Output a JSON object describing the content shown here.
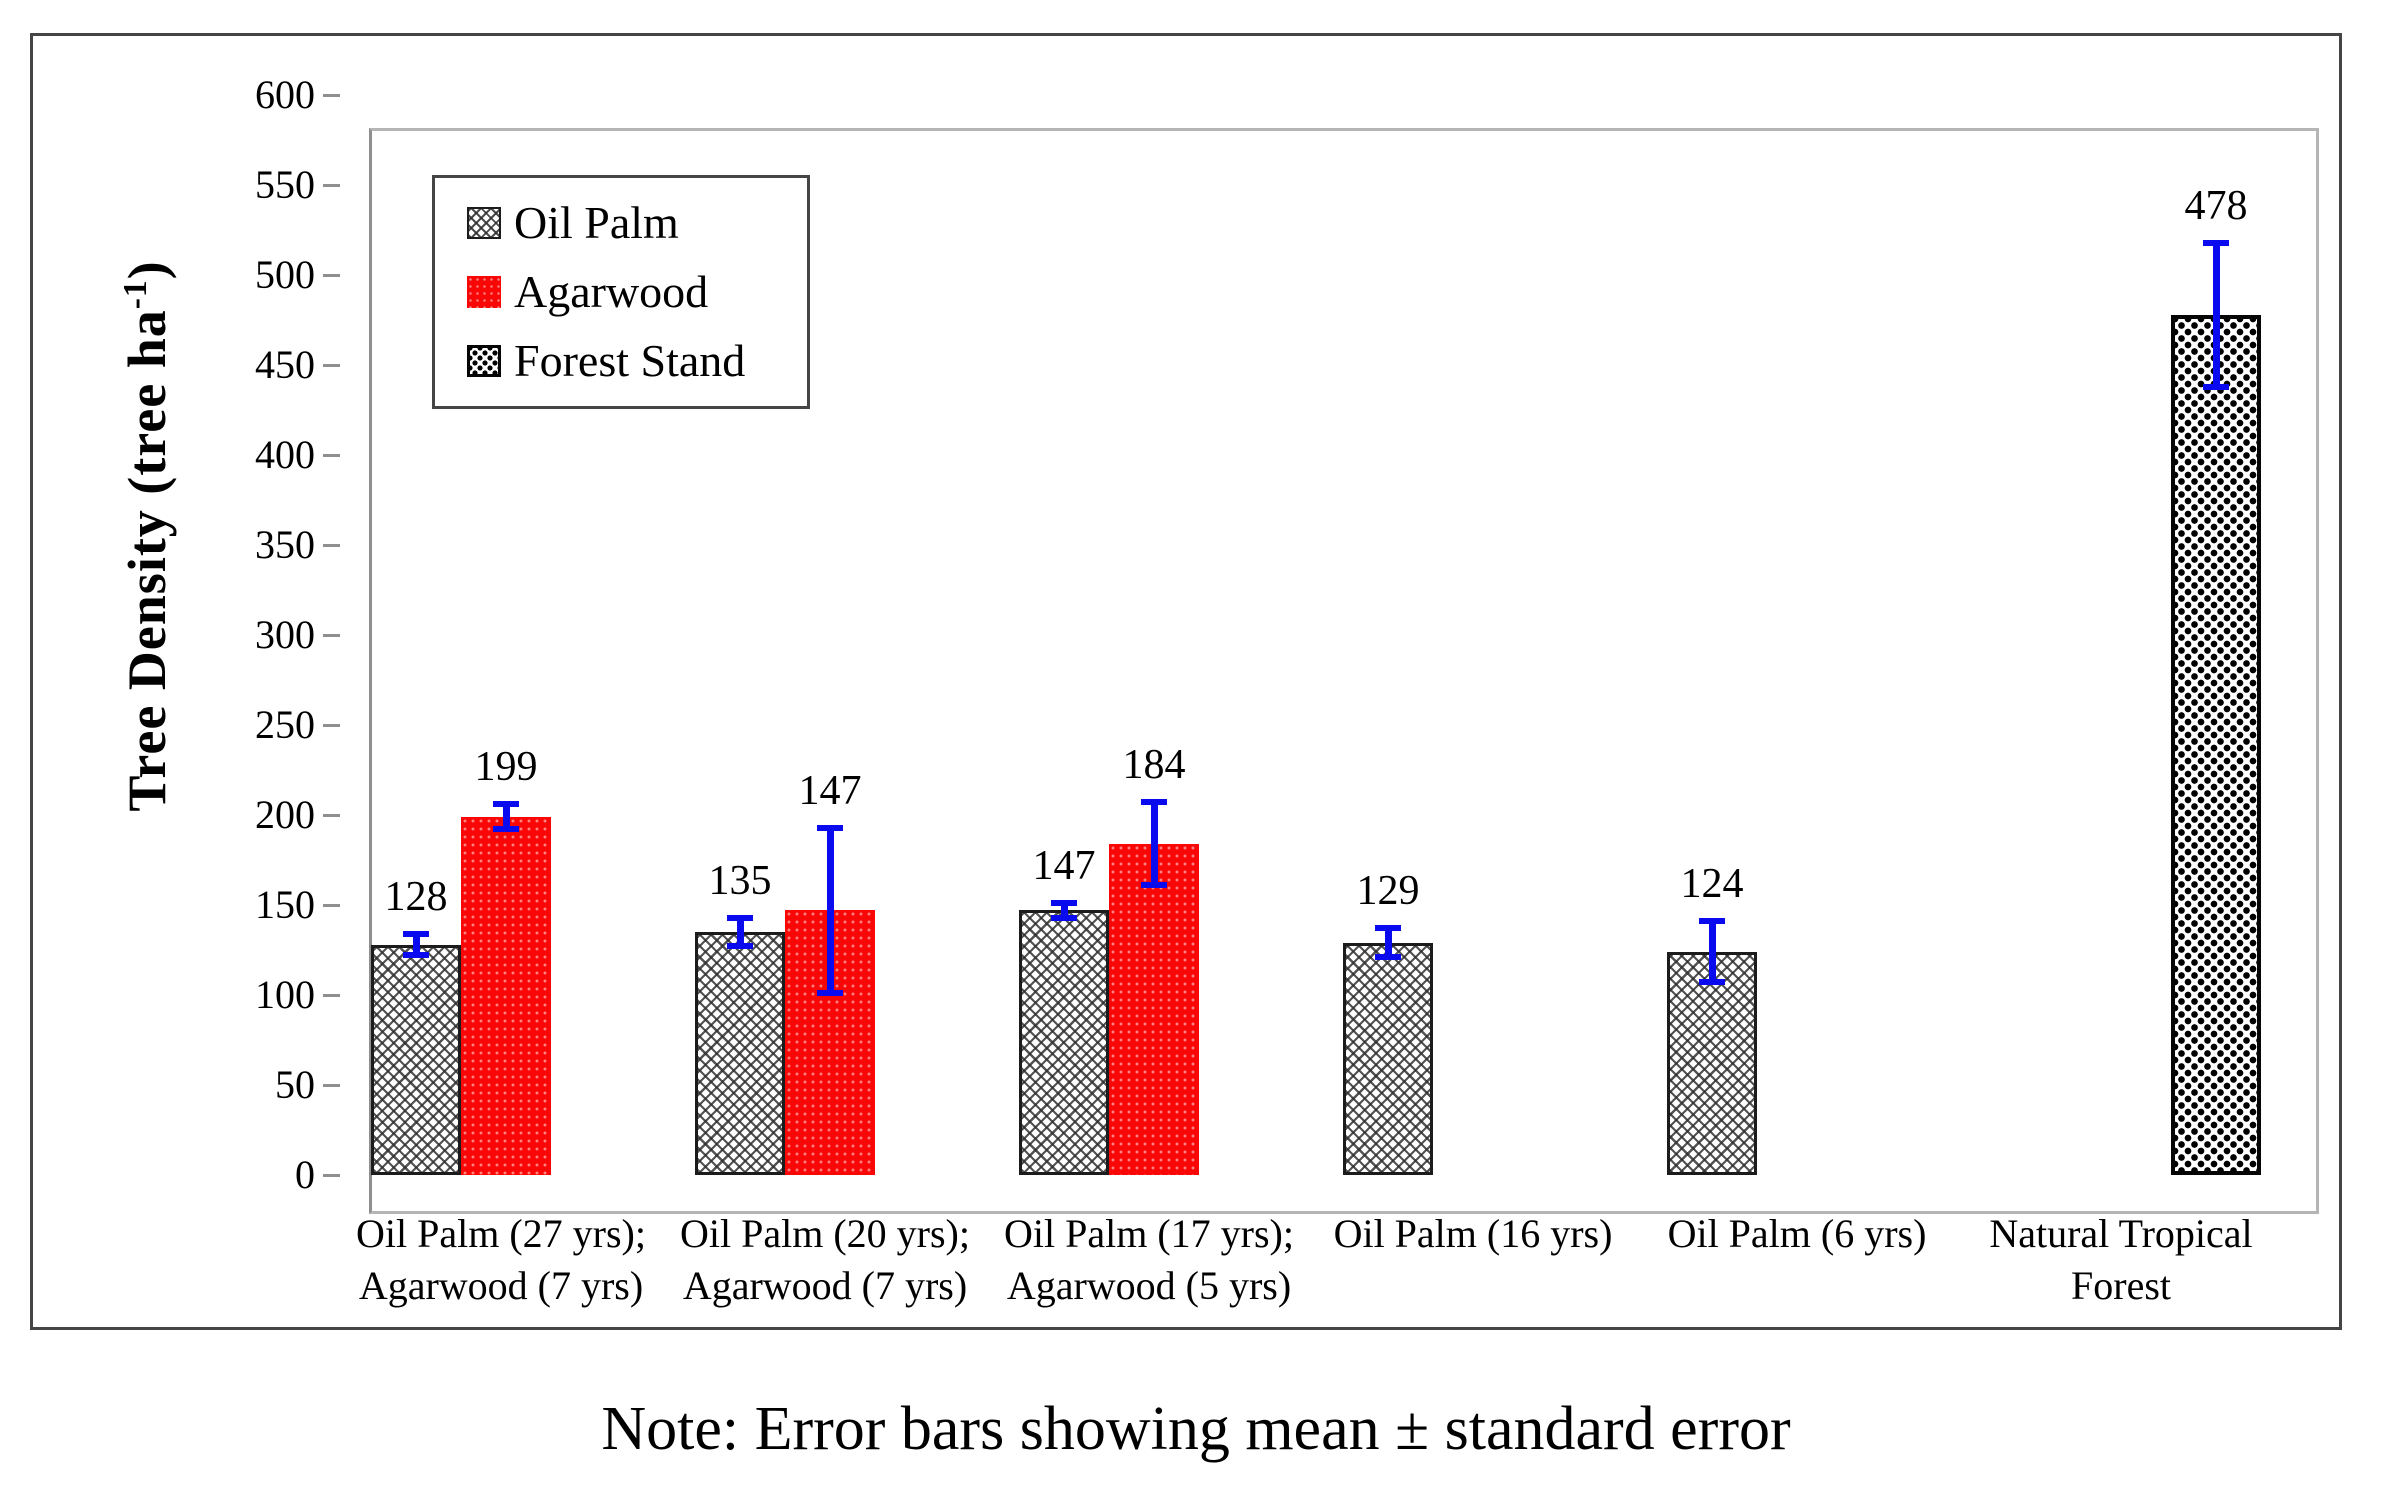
{
  "chart_data": {
    "type": "bar",
    "title": "",
    "ylabel": {
      "main": "Tree Density (tree ha",
      "sup": "-1",
      "close": ")"
    },
    "xlabel": "",
    "ylim": [
      0,
      600
    ],
    "ytick_step": 50,
    "grid": "off",
    "legend_position": "top-left",
    "error_bar_color": "#0a0aee",
    "categories": [
      "Oil Palm (27 yrs);\nAgarwood (7 yrs)",
      "Oil Palm (20 yrs);\nAgarwood (7 yrs)",
      "Oil Palm (17 yrs);\nAgarwood (5 yrs)",
      "Oil Palm (16 yrs)",
      "Oil Palm (6 yrs)",
      "Natural Tropical\nForest"
    ],
    "series": [
      {
        "name": "Oil Palm",
        "style": "oilpalm",
        "pattern": "diagonal-crosshatch",
        "values": [
          128,
          135,
          147,
          129,
          124,
          null
        ],
        "errors": [
          6,
          8,
          4,
          8,
          17,
          null
        ]
      },
      {
        "name": "Agarwood",
        "style": "agarwood",
        "color": "#f90606",
        "values": [
          199,
          147,
          184,
          null,
          null,
          null
        ],
        "errors": [
          7,
          46,
          23,
          null,
          null,
          null
        ]
      },
      {
        "name": "Forest Stand",
        "style": "forest",
        "pattern": "black-dots",
        "values": [
          null,
          null,
          null,
          null,
          null,
          478
        ],
        "errors": [
          null,
          null,
          null,
          null,
          null,
          40
        ]
      }
    ],
    "note": "Note: Error bars showing mean ± standard error"
  }
}
